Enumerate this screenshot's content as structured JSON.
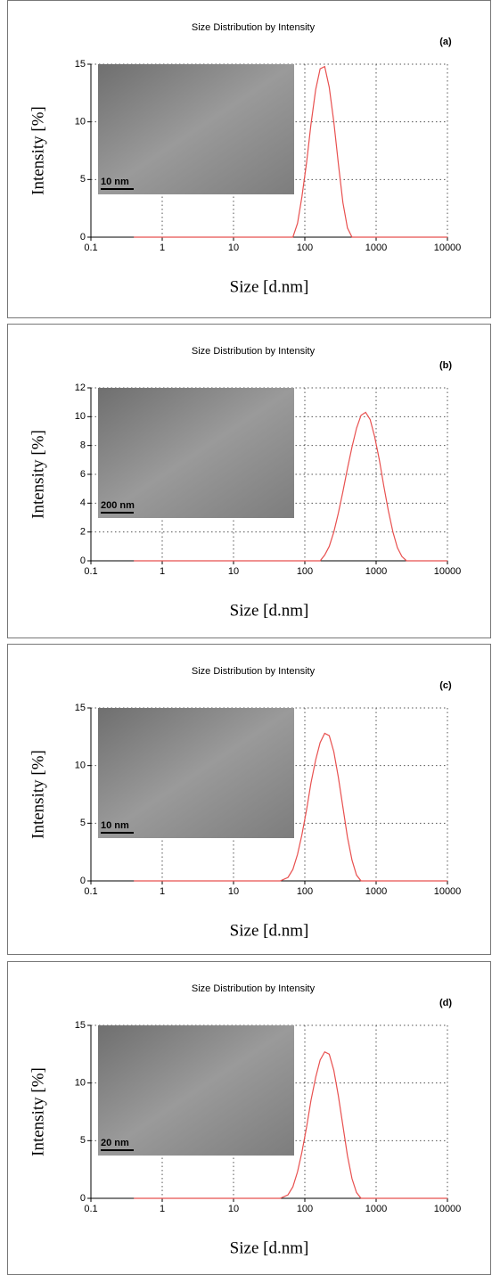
{
  "chart_data": [
    {
      "type": "line",
      "title": "Size Distribution by Intensity",
      "panel_label": "(a)",
      "inset_scale": "10 nm",
      "xlabel": "Size [d.nm]",
      "ylabel": "Intensity [%]",
      "xscale": "log",
      "grid": true,
      "color": "#e8504f",
      "xlim": [
        0.1,
        10000
      ],
      "xticks": [
        0.1,
        1,
        10,
        100,
        1000,
        10000
      ],
      "ylim": [
        0,
        15
      ],
      "yticks": [
        0,
        5,
        10,
        15
      ],
      "x": [
        0.4,
        1,
        10,
        50,
        68,
        79,
        91,
        106,
        122,
        142,
        164,
        190,
        220,
        255,
        295,
        342,
        396,
        459,
        1000,
        10000
      ],
      "values": [
        0,
        0,
        0,
        0,
        0,
        1.2,
        3.5,
        6.5,
        9.8,
        12.8,
        14.6,
        14.8,
        13.0,
        10.0,
        6.4,
        3.0,
        0.8,
        0,
        0,
        0
      ]
    },
    {
      "type": "line",
      "title": "Size Distribution by Intensity",
      "panel_label": "(b)",
      "inset_scale": "200 nm",
      "xlabel": "Size [d.nm]",
      "ylabel": "Intensity [%]",
      "xscale": "log",
      "grid": true,
      "color": "#e8504f",
      "xlim": [
        0.1,
        10000
      ],
      "xticks": [
        0.1,
        1,
        10,
        100,
        1000,
        10000
      ],
      "ylim": [
        0,
        12
      ],
      "yticks": [
        0,
        2,
        4,
        6,
        8,
        10,
        12
      ],
      "x": [
        0.4,
        1,
        10,
        100,
        164,
        190,
        220,
        255,
        295,
        342,
        396,
        459,
        531,
        615,
        712,
        825,
        955,
        1110,
        1280,
        1480,
        1720,
        1990,
        2300,
        2670,
        10000
      ],
      "values": [
        0,
        0,
        0,
        0,
        0,
        0.4,
        1.0,
        2.0,
        3.3,
        4.8,
        6.4,
        7.9,
        9.2,
        10.1,
        10.3,
        9.8,
        8.6,
        7.0,
        5.2,
        3.5,
        2.0,
        0.9,
        0.3,
        0,
        0
      ]
    },
    {
      "type": "line",
      "title": "Size Distribution by Intensity",
      "panel_label": "(c)",
      "inset_scale": "10 nm",
      "xlabel": "Size [d.nm]",
      "ylabel": "Intensity [%]",
      "xscale": "log",
      "grid": true,
      "color": "#e8504f",
      "xlim": [
        0.1,
        10000
      ],
      "xticks": [
        0.1,
        1,
        10,
        100,
        1000,
        10000
      ],
      "ylim": [
        0,
        15
      ],
      "yticks": [
        0,
        5,
        10,
        15
      ],
      "x": [
        0.4,
        1,
        10,
        45,
        58,
        68,
        79,
        91,
        106,
        122,
        142,
        164,
        190,
        220,
        255,
        295,
        342,
        396,
        459,
        531,
        615,
        1000,
        10000
      ],
      "values": [
        0,
        0,
        0,
        0,
        0.3,
        1.0,
        2.3,
        4.0,
        6.2,
        8.5,
        10.5,
        12.0,
        12.8,
        12.6,
        11.2,
        9.0,
        6.4,
        3.8,
        1.8,
        0.5,
        0,
        0,
        0
      ]
    },
    {
      "type": "line",
      "title": "Size Distribution by Intensity",
      "panel_label": "(d)",
      "inset_scale": "20 nm",
      "xlabel": "Size [d.nm]",
      "ylabel": "Intensity [%]",
      "xscale": "log",
      "grid": true,
      "color": "#e8504f",
      "xlim": [
        0.1,
        10000
      ],
      "xticks": [
        0.1,
        1,
        10,
        100,
        1000,
        10000
      ],
      "ylim": [
        0,
        15
      ],
      "yticks": [
        0,
        5,
        10,
        15
      ],
      "x": [
        0.4,
        1,
        10,
        45,
        58,
        68,
        79,
        91,
        106,
        122,
        142,
        164,
        190,
        220,
        255,
        295,
        342,
        396,
        459,
        531,
        615,
        1000,
        10000
      ],
      "values": [
        0,
        0,
        0,
        0,
        0.3,
        1.0,
        2.3,
        4.0,
        6.2,
        8.5,
        10.5,
        12.0,
        12.7,
        12.5,
        11.1,
        8.9,
        6.3,
        3.7,
        1.7,
        0.5,
        0,
        0,
        0
      ]
    }
  ]
}
